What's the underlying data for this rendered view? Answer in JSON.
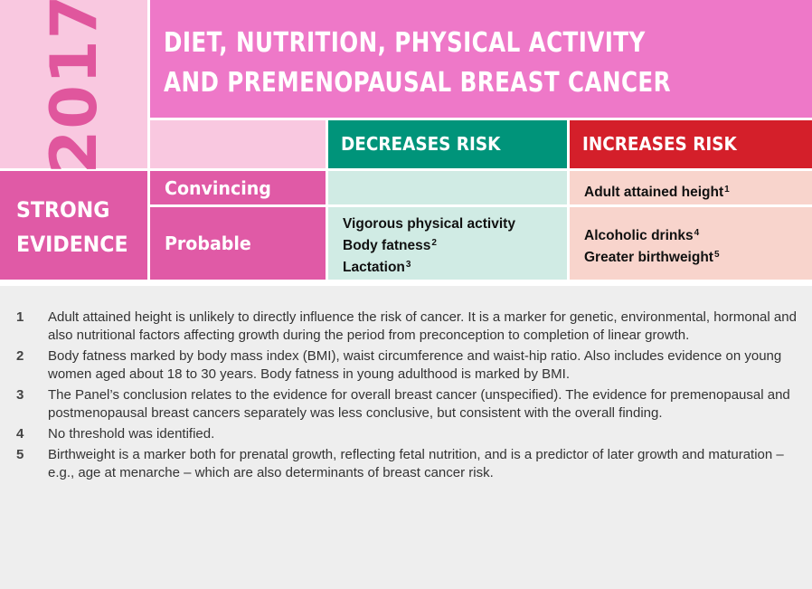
{
  "year": "2017",
  "title": {
    "line1": "DIET, NUTRITION, PHYSICAL ACTIVITY",
    "line2": "AND PREMENOPAUSAL BREAST CANCER"
  },
  "headers": {
    "decreases": "DECREASES RISK",
    "increases": "INCREASES RISK"
  },
  "evidence": {
    "label_line1": "STRONG",
    "label_line2": "EVIDENCE",
    "rows": [
      {
        "label": "Convincing",
        "decreases": [],
        "increases": [
          {
            "text": "Adult attained height",
            "sup": "1"
          }
        ]
      },
      {
        "label": "Probable",
        "decreases": [
          {
            "text": "Vigorous physical activity",
            "sup": ""
          },
          {
            "text": "Body fatness",
            "sup": "2"
          },
          {
            "text": "Lactation",
            "sup": "3"
          }
        ],
        "increases": [
          {
            "text": "Alcoholic drinks",
            "sup": "4"
          },
          {
            "text": "Greater birthweight",
            "sup": "5"
          }
        ]
      }
    ]
  },
  "footnotes": [
    {
      "num": "1",
      "text": "Adult attained height is unlikely to directly influence the risk of cancer. It is a marker for genetic, environmental, hormonal and also nutritional factors affecting growth during the period from preconception to completion of linear growth."
    },
    {
      "num": "2",
      "text": "Body fatness marked by body mass index (BMI), waist circumference and waist-hip ratio. Also includes evidence on young women aged about 18 to 30 years. Body fatness in young adulthood is marked by BMI."
    },
    {
      "num": "3",
      "text": "The Panel’s conclusion relates to the evidence for overall breast cancer (unspecified). The evidence for premenopausal and postmenopausal breast cancers separately was less conclusive, but consistent with the overall finding."
    },
    {
      "num": "4",
      "text": "No threshold was identified."
    },
    {
      "num": "5",
      "text": "Birthweight is a marker both for prenatal growth, reflecting fetal nutrition, and is a predictor of later growth and maturation – e.g., age at menarche – which are also determinants of breast cancer risk."
    }
  ],
  "colors": {
    "pink_light": "#f9c8e0",
    "pink_title": "#ee78c8",
    "pink_strong": "#e05aa6",
    "teal": "#00947a",
    "teal_light": "#d0ebe4",
    "red": "#d41f2a",
    "red_light": "#f8d4cc",
    "notes_bg": "#eeeeee"
  }
}
